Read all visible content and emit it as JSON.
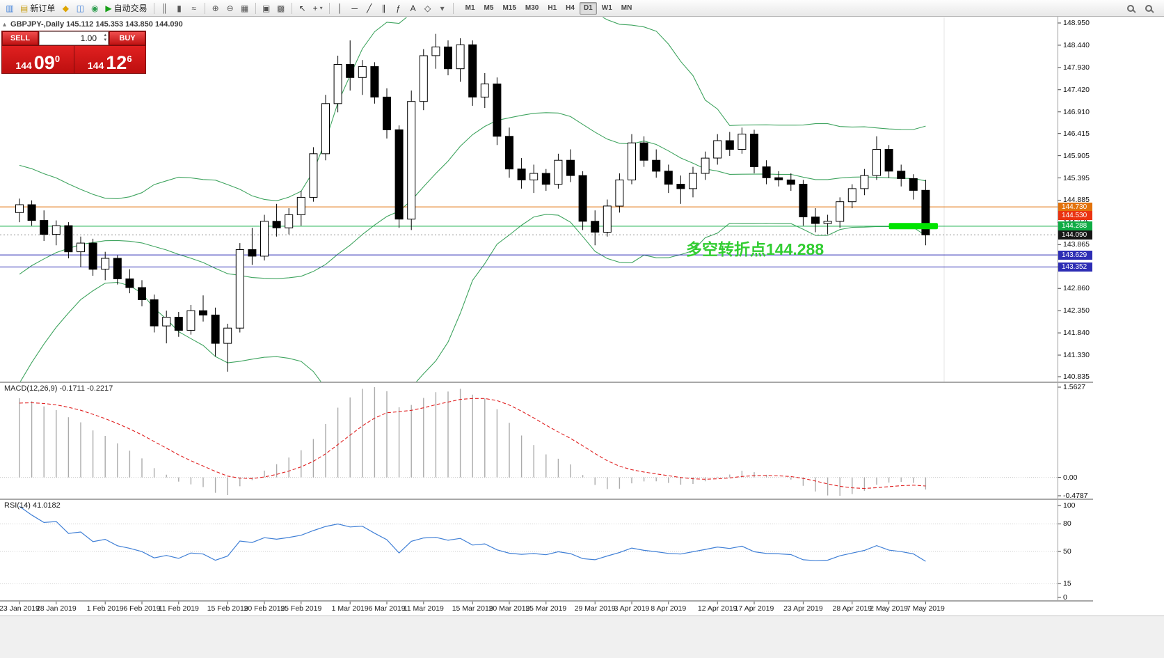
{
  "toolbar": {
    "items": [
      {
        "name": "charts-icon",
        "glyph": "▥",
        "color": "#3b7dd8"
      },
      {
        "name": "new-order-button",
        "glyph": "▤",
        "color": "#caa21d",
        "label": "新订单"
      },
      {
        "name": "market-watch-icon",
        "glyph": "◆",
        "color": "#dea500"
      },
      {
        "name": "data-window-icon",
        "glyph": "◫",
        "color": "#3b7dd8"
      },
      {
        "name": "navigator-icon",
        "glyph": "◉",
        "color": "#2e9e4f"
      },
      {
        "name": "auto-trading-button",
        "glyph": "▶",
        "color": "#18a018",
        "label": "自动交易"
      },
      {
        "sep": true
      },
      {
        "name": "bar-chart-icon",
        "glyph": "║",
        "color": "#555555"
      },
      {
        "name": "candlestick-chart-icon",
        "glyph": "▮",
        "color": "#555555"
      },
      {
        "name": "line-chart-icon",
        "glyph": "≈",
        "color": "#555555"
      },
      {
        "sep": true
      },
      {
        "name": "zoom-in-icon",
        "glyph": "⊕",
        "color": "#555555"
      },
      {
        "name": "zoom-out-icon",
        "glyph": "⊖",
        "color": "#555555"
      },
      {
        "name": "tile-windows-icon",
        "glyph": "▦",
        "color": "#555555"
      },
      {
        "sep": true
      },
      {
        "name": "new-window-icon",
        "glyph": "▣",
        "color": "#555555"
      },
      {
        "name": "cascade-windows-icon",
        "glyph": "▩",
        "color": "#555555"
      },
      {
        "sep": true
      },
      {
        "name": "cursor-icon",
        "glyph": "↖",
        "color": "#333333"
      },
      {
        "name": "crosshair-icon",
        "glyph": "+",
        "color": "#333333",
        "caret": true
      },
      {
        "sep": true
      },
      {
        "name": "vertical-line-icon",
        "glyph": "│",
        "color": "#333333"
      },
      {
        "name": "horizontal-line-icon",
        "glyph": "─",
        "color": "#333333"
      },
      {
        "name": "trendline-icon",
        "glyph": "╱",
        "color": "#333333"
      },
      {
        "name": "channel-icon",
        "glyph": "∥",
        "color": "#333333"
      },
      {
        "name": "fibonacci-icon",
        "glyph": "ƒ",
        "color": "#333333"
      },
      {
        "name": "text-label-icon",
        "glyph": "A",
        "color": "#333333"
      },
      {
        "name": "shapes-icon",
        "glyph": "◇",
        "color": "#333333"
      },
      {
        "name": "objects-dropdown",
        "glyph": "▾",
        "color": "#666666"
      },
      {
        "sep": true
      }
    ],
    "timeframes": [
      "M1",
      "M5",
      "M15",
      "M30",
      "H1",
      "H4",
      "D1",
      "W1",
      "MN"
    ],
    "active_timeframe": "D1",
    "right_items": [
      {
        "name": "zoom-search-icon"
      },
      {
        "name": "symbol-search-icon"
      }
    ]
  },
  "chart": {
    "collapse_icon": "▴",
    "header": "GBPJPY-,Daily 145.112 145.353 143.850 144.090"
  },
  "trade_panel": {
    "sell_label": "SELL",
    "buy_label": "BUY",
    "volume": "1.00",
    "spin_up": "▴",
    "spin_down": "▾",
    "sell_price": {
      "base": "144",
      "big": "09",
      "sup": "0"
    },
    "buy_price": {
      "base": "144",
      "big": "12",
      "sup": "6"
    }
  },
  "annotation": {
    "text": "多空转折点144.288",
    "color": "#32cd32"
  },
  "highlight": {
    "price": 144.288,
    "from_index": 71,
    "to_index": 75,
    "color": "#00e400"
  },
  "levels": [
    {
      "price": 144.73,
      "label": "144.730",
      "color": "#e2720b",
      "style": "solid"
    },
    {
      "price": 144.53,
      "label": "144.530",
      "color": "#ea3311,",
      "style": "solid"
    },
    {
      "price": 144.288,
      "label": "144.288",
      "color": "#0fac44",
      "style": "solid"
    },
    {
      "price": 144.09,
      "label": "144.090",
      "color": "#161616",
      "line_color": "#909090",
      "style": "dotted"
    },
    {
      "price": 143.629,
      "label": "143.629",
      "color": "#2d2db4",
      "style": "solid"
    },
    {
      "price": 143.352,
      "label": "143.352",
      "color": "#2d2db4",
      "style": "solid"
    }
  ],
  "price_axis": {
    "ticks": [
      "148.950",
      "148.440",
      "147.930",
      "147.420",
      "146.910",
      "146.415",
      "145.905",
      "145.395",
      "144.885",
      "144.375",
      "143.865",
      "143.355",
      "142.860",
      "142.350",
      "141.840",
      "141.330",
      "140.835"
    ]
  },
  "macd_panel": {
    "title": "MACD(12,26,9)",
    "values": [
      "-0.1711",
      "-0.2217"
    ],
    "scale": [
      "1.5627",
      "0.00",
      "-0.4787"
    ]
  },
  "rsi_panel": {
    "title": "RSI(14)",
    "value": "41.0182",
    "scale": [
      "100",
      "80",
      "50",
      "15",
      "0"
    ],
    "levels": [
      80,
      50,
      15
    ]
  },
  "chart_data": {
    "type": "candlestick",
    "symbol": "GBPJPY-",
    "timeframe": "Daily",
    "current_ohlc": [
      145.112,
      145.353,
      143.85,
      144.09
    ],
    "price_range": [
      140.835,
      148.95
    ],
    "indicators": [
      {
        "type": "bollinger",
        "period": 20,
        "deviation": 2,
        "color": "#3fa45f"
      },
      {
        "type": "macd",
        "fast": 12,
        "slow": 26,
        "signal": 9,
        "histogram_color": "#ababab",
        "signal_color": "#e02020"
      },
      {
        "type": "rsi",
        "period": 14,
        "color": "#3f7fd6"
      }
    ],
    "prehistory_closes": [
      139.8,
      140.5,
      141.0,
      141.4,
      141.8,
      142.1,
      142.4,
      142.7,
      143.0,
      143.2,
      143.4,
      143.6,
      143.8,
      143.95,
      144.1,
      144.2,
      144.3,
      144.4,
      144.5,
      144.6
    ],
    "ohlc": [
      [
        144.6,
        144.92,
        144.38,
        144.78
      ],
      [
        144.78,
        144.88,
        144.3,
        144.42
      ],
      [
        144.42,
        144.65,
        143.95,
        144.1
      ],
      [
        144.1,
        144.42,
        143.85,
        144.3
      ],
      [
        144.3,
        144.38,
        143.55,
        143.7
      ],
      [
        143.7,
        144.05,
        143.35,
        143.9
      ],
      [
        143.9,
        144.0,
        143.15,
        143.3
      ],
      [
        143.3,
        143.7,
        143.05,
        143.55
      ],
      [
        143.55,
        143.62,
        142.95,
        143.08
      ],
      [
        143.08,
        143.3,
        142.75,
        142.88
      ],
      [
        142.88,
        143.05,
        142.45,
        142.6
      ],
      [
        142.6,
        142.72,
        141.85,
        142.0
      ],
      [
        142.0,
        142.35,
        141.6,
        142.2
      ],
      [
        142.2,
        142.32,
        141.75,
        141.9
      ],
      [
        141.9,
        142.48,
        141.8,
        142.35
      ],
      [
        142.35,
        142.7,
        142.1,
        142.25
      ],
      [
        142.25,
        142.42,
        141.3,
        141.6
      ],
      [
        141.6,
        142.05,
        140.95,
        141.95
      ],
      [
        141.95,
        143.9,
        141.85,
        143.75
      ],
      [
        143.75,
        144.25,
        143.4,
        143.6
      ],
      [
        143.6,
        144.55,
        143.5,
        144.4
      ],
      [
        144.4,
        144.8,
        144.05,
        144.25
      ],
      [
        144.25,
        144.7,
        144.1,
        144.55
      ],
      [
        144.55,
        145.1,
        144.3,
        144.95
      ],
      [
        144.95,
        146.1,
        144.85,
        145.95
      ],
      [
        145.95,
        147.3,
        145.8,
        147.1
      ],
      [
        147.1,
        148.2,
        146.9,
        148.0
      ],
      [
        148.0,
        148.55,
        147.4,
        147.7
      ],
      [
        147.7,
        148.1,
        147.3,
        147.95
      ],
      [
        147.95,
        148.05,
        147.1,
        147.25
      ],
      [
        147.25,
        147.45,
        146.3,
        146.5
      ],
      [
        146.5,
        146.6,
        144.25,
        144.45
      ],
      [
        144.45,
        147.4,
        144.2,
        147.15
      ],
      [
        147.15,
        148.35,
        146.95,
        148.2
      ],
      [
        148.2,
        148.7,
        147.9,
        148.4
      ],
      [
        148.4,
        148.55,
        147.75,
        147.9
      ],
      [
        147.9,
        148.6,
        147.6,
        148.45
      ],
      [
        148.45,
        148.55,
        147.05,
        147.25
      ],
      [
        147.25,
        147.8,
        147.0,
        147.55
      ],
      [
        147.55,
        147.7,
        146.15,
        146.35
      ],
      [
        146.35,
        146.55,
        145.4,
        145.6
      ],
      [
        145.6,
        145.85,
        145.15,
        145.35
      ],
      [
        145.35,
        145.7,
        145.05,
        145.5
      ],
      [
        145.5,
        145.6,
        145.1,
        145.25
      ],
      [
        145.25,
        145.95,
        145.15,
        145.8
      ],
      [
        145.8,
        146.05,
        145.3,
        145.45
      ],
      [
        145.45,
        145.55,
        144.2,
        144.4
      ],
      [
        144.4,
        144.65,
        143.85,
        144.15
      ],
      [
        144.15,
        144.9,
        144.05,
        144.75
      ],
      [
        144.75,
        145.5,
        144.6,
        145.35
      ],
      [
        145.35,
        146.4,
        145.25,
        146.2
      ],
      [
        146.2,
        146.35,
        145.65,
        145.8
      ],
      [
        145.8,
        146.05,
        145.4,
        145.55
      ],
      [
        145.55,
        145.7,
        145.05,
        145.25
      ],
      [
        145.25,
        145.45,
        144.8,
        145.15
      ],
      [
        145.15,
        145.65,
        144.95,
        145.5
      ],
      [
        145.5,
        146.0,
        145.35,
        145.85
      ],
      [
        145.85,
        146.4,
        145.7,
        146.25
      ],
      [
        146.25,
        146.45,
        145.9,
        146.05
      ],
      [
        146.05,
        146.55,
        145.95,
        146.4
      ],
      [
        146.4,
        146.5,
        145.5,
        145.65
      ],
      [
        145.65,
        145.8,
        145.25,
        145.4
      ],
      [
        145.4,
        145.55,
        145.2,
        145.35
      ],
      [
        145.35,
        145.5,
        145.1,
        145.25
      ],
      [
        145.25,
        145.35,
        144.3,
        144.5
      ],
      [
        144.5,
        144.7,
        144.15,
        144.35
      ],
      [
        144.35,
        144.55,
        144.1,
        144.4
      ],
      [
        144.4,
        144.95,
        144.25,
        144.85
      ],
      [
        144.85,
        145.25,
        144.7,
        145.15
      ],
      [
        145.15,
        145.6,
        145.0,
        145.45
      ],
      [
        145.45,
        146.35,
        145.35,
        146.05
      ],
      [
        146.05,
        146.15,
        145.4,
        145.55
      ],
      [
        145.55,
        145.7,
        145.2,
        145.38
      ],
      [
        145.38,
        145.48,
        144.9,
        145.11
      ],
      [
        145.112,
        145.353,
        143.85,
        144.09
      ]
    ],
    "x_labels": [
      {
        "label": "23 Jan 2019",
        "index": 0
      },
      {
        "label": "28 Jan 2019",
        "index": 3
      },
      {
        "label": "1 Feb 2019",
        "index": 7
      },
      {
        "label": "6 Feb 2019",
        "index": 10
      },
      {
        "label": "11 Feb 2019",
        "index": 13
      },
      {
        "label": "15 Feb 2019",
        "index": 17
      },
      {
        "label": "20 Feb 2019",
        "index": 20
      },
      {
        "label": "25 Feb 2019",
        "index": 23
      },
      {
        "label": "1 Mar 2019",
        "index": 27
      },
      {
        "label": "6 Mar 2019",
        "index": 30
      },
      {
        "label": "11 Mar 2019",
        "index": 33
      },
      {
        "label": "15 Mar 2019",
        "index": 37
      },
      {
        "label": "20 Mar 2019",
        "index": 40
      },
      {
        "label": "25 Mar 2019",
        "index": 43
      },
      {
        "label": "29 Mar 2019",
        "index": 47
      },
      {
        "label": "3 Apr 2019",
        "index": 50
      },
      {
        "label": "8 Apr 2019",
        "index": 53
      },
      {
        "label": "12 Apr 2019",
        "index": 57
      },
      {
        "label": "17 Apr 2019",
        "index": 60
      },
      {
        "label": "23 Apr 2019",
        "index": 64
      },
      {
        "label": "28 Apr 2019",
        "index": 68
      },
      {
        "label": "2 May 2019",
        "index": 71
      },
      {
        "label": "7 May 2019",
        "index": 74
      }
    ]
  }
}
